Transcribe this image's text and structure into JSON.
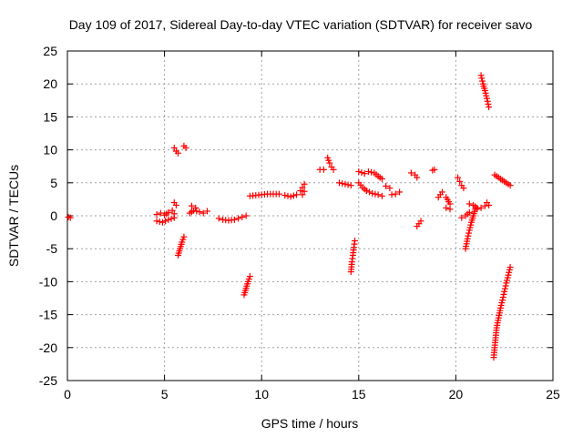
{
  "chart_data": {
    "type": "scatter",
    "title": "Day 109 of 2017, Sidereal Day-to-day VTEC variation (SDTVAR) for receiver savo",
    "xlabel": "GPS time / hours",
    "ylabel": "SDTVAR / TECUs",
    "xlim": [
      0,
      25
    ],
    "ylim": [
      -25,
      25
    ],
    "xticks": [
      0,
      5,
      10,
      15,
      20,
      25
    ],
    "yticks": [
      -25,
      -20,
      -15,
      -10,
      -5,
      0,
      5,
      10,
      15,
      20,
      25
    ],
    "grid": true,
    "marker": "plus",
    "color": "#ff0000",
    "segments": [
      {
        "x": [
          0.05,
          0.15
        ],
        "y": [
          -0.2,
          -0.3
        ]
      },
      {
        "x": [
          4.6,
          4.8,
          5.0,
          5.2,
          5.4,
          5.5
        ],
        "y": [
          0.2,
          0.4,
          0.1,
          0.5,
          0.8,
          0.3
        ]
      },
      {
        "x": [
          4.6,
          4.9,
          5.2,
          5.5
        ],
        "y": [
          -0.8,
          -1.0,
          -0.6,
          -0.3
        ]
      },
      {
        "x": [
          5.5,
          5.6,
          5.7
        ],
        "y": [
          10.3,
          9.8,
          9.5
        ]
      },
      {
        "x": [
          6.0,
          6.1
        ],
        "y": [
          10.6,
          10.3
        ]
      },
      {
        "x": [
          5.5,
          5.6
        ],
        "y": [
          2.0,
          1.6
        ]
      },
      {
        "x": [
          5.7,
          5.8,
          5.9,
          6.0
        ],
        "y": [
          -6.0,
          -5.0,
          -4.0,
          -3.2
        ]
      },
      {
        "x": [
          6.3,
          6.5,
          6.8,
          7.0,
          7.2
        ],
        "y": [
          0.4,
          0.8,
          0.6,
          0.4,
          0.7
        ]
      },
      {
        "x": [
          6.4,
          6.6
        ],
        "y": [
          1.5,
          1.2
        ]
      },
      {
        "x": [
          7.8,
          8.0,
          8.3,
          8.6,
          8.8,
          9.0,
          9.2
        ],
        "y": [
          -0.4,
          -0.6,
          -0.7,
          -0.6,
          -0.4,
          -0.2,
          0.0
        ]
      },
      {
        "x": [
          9.1,
          9.2,
          9.3,
          9.4
        ],
        "y": [
          -12.0,
          -11.0,
          -10.0,
          -9.2
        ]
      },
      {
        "x": [
          9.4,
          9.7,
          10.0,
          10.3,
          10.6,
          10.9
        ],
        "y": [
          3.0,
          3.1,
          3.2,
          3.3,
          3.3,
          3.3
        ]
      },
      {
        "x": [
          11.2,
          11.5,
          11.8
        ],
        "y": [
          3.1,
          2.9,
          3.2
        ]
      },
      {
        "x": [
          12.0,
          12.1,
          12.2
        ],
        "y": [
          3.8,
          4.3,
          4.8
        ]
      },
      {
        "x": [
          12.1,
          12.2
        ],
        "y": [
          3.2,
          3.7
        ]
      },
      {
        "x": [
          13.0,
          13.2
        ],
        "y": [
          7.0,
          7.0
        ]
      },
      {
        "x": [
          13.4,
          13.5,
          13.6,
          13.7
        ],
        "y": [
          8.8,
          8.0,
          7.4,
          7.0
        ]
      },
      {
        "x": [
          14.0,
          14.3,
          14.6
        ],
        "y": [
          5.0,
          4.8,
          4.6
        ]
      },
      {
        "x": [
          14.6,
          14.65,
          14.7,
          14.75,
          14.8
        ],
        "y": [
          -8.5,
          -7.0,
          -6.0,
          -4.8,
          -3.8
        ]
      },
      {
        "x": [
          15.0,
          15.2,
          15.4
        ],
        "y": [
          5.0,
          4.3,
          3.8
        ]
      },
      {
        "x": [
          15.0,
          15.3
        ],
        "y": [
          6.7,
          6.4
        ]
      },
      {
        "x": [
          15.5,
          15.8,
          16.0,
          16.2
        ],
        "y": [
          6.7,
          6.5,
          6.0,
          5.6
        ]
      },
      {
        "x": [
          15.4,
          15.7,
          16.0,
          16.2
        ],
        "y": [
          3.8,
          3.4,
          3.2,
          3.0
        ]
      },
      {
        "x": [
          16.4,
          16.6
        ],
        "y": [
          4.5,
          4.2
        ]
      },
      {
        "x": [
          16.7,
          16.9,
          17.1
        ],
        "y": [
          3.2,
          3.3,
          3.6
        ]
      },
      {
        "x": [
          17.7,
          17.9,
          18.0
        ],
        "y": [
          6.5,
          6.2,
          5.8
        ]
      },
      {
        "x": [
          18.0,
          18.1,
          18.2
        ],
        "y": [
          -1.6,
          -1.2,
          -0.8
        ]
      },
      {
        "x": [
          18.8,
          18.9
        ],
        "y": [
          6.9,
          7.0
        ]
      },
      {
        "x": [
          19.1,
          19.2,
          19.3
        ],
        "y": [
          2.8,
          3.2,
          3.6
        ]
      },
      {
        "x": [
          19.5,
          19.7
        ],
        "y": [
          2.8,
          1.8
        ]
      },
      {
        "x": [
          19.5,
          19.7
        ],
        "y": [
          1.2,
          1.0
        ]
      },
      {
        "x": [
          20.1,
          20.2,
          20.3,
          20.4
        ],
        "y": [
          5.8,
          5.2,
          4.6,
          4.2
        ]
      },
      {
        "x": [
          20.3,
          20.5,
          20.7
        ],
        "y": [
          -0.3,
          0.0,
          0.5
        ]
      },
      {
        "x": [
          20.5,
          20.6,
          20.7,
          20.8,
          20.9,
          21.0
        ],
        "y": [
          -5.0,
          -3.5,
          -2.2,
          -1.0,
          0.0,
          1.0
        ]
      },
      {
        "x": [
          20.7,
          20.9,
          21.1
        ],
        "y": [
          1.8,
          1.6,
          1.2
        ]
      },
      {
        "x": [
          21.1,
          21.3,
          21.5,
          21.6,
          21.7
        ],
        "y": [
          1.0,
          1.2,
          1.5,
          2.0,
          1.6
        ]
      },
      {
        "x": [
          21.3,
          21.4,
          21.5,
          21.6,
          21.7
        ],
        "y": [
          21.3,
          20.0,
          19.0,
          17.8,
          16.5
        ]
      },
      {
        "x": [
          22.0,
          22.2,
          22.4,
          22.6,
          22.8
        ],
        "y": [
          6.2,
          5.8,
          5.4,
          5.0,
          4.6
        ]
      },
      {
        "x": [
          21.95,
          22.0,
          22.05,
          22.1,
          22.2,
          22.3,
          22.4,
          22.5,
          22.6,
          22.7,
          22.8
        ],
        "y": [
          -21.5,
          -20.0,
          -18.5,
          -17.0,
          -15.5,
          -14.0,
          -12.8,
          -11.5,
          -10.2,
          -9.0,
          -7.8
        ]
      }
    ]
  }
}
